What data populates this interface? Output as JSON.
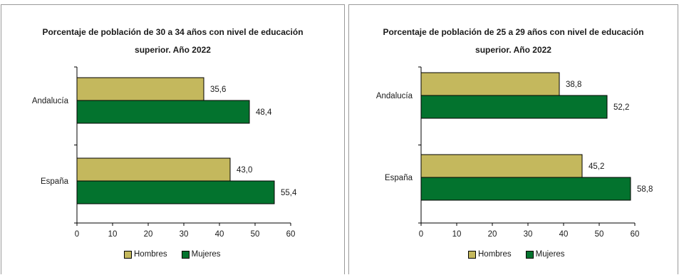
{
  "colors": {
    "hombres": "#c4b85d",
    "mujeres": "#03732e",
    "axis": "#000000"
  },
  "chart_data": [
    {
      "type": "bar",
      "orientation": "horizontal",
      "title_line1": "Porcentaje de población de 30 a 34 años con nivel de educación",
      "title_line2": "superior. Año 2022",
      "categories": [
        "Andalucía",
        "España"
      ],
      "series": [
        {
          "name": "Hombres",
          "values": [
            35.6,
            43.0
          ],
          "labels": [
            "35,6",
            "43,0"
          ]
        },
        {
          "name": "Mujeres",
          "values": [
            48.4,
            55.4
          ],
          "labels": [
            "48,4",
            "55,4"
          ]
        }
      ],
      "xlim": [
        0,
        60
      ],
      "xticks": [
        "0",
        "10",
        "20",
        "30",
        "40",
        "50",
        "60"
      ],
      "legend_position": "bottom",
      "grid": false
    },
    {
      "type": "bar",
      "orientation": "horizontal",
      "title_line1": "Porcentaje de población de 25 a 29 años con nivel de educación",
      "title_line2": "superior. Año 2022",
      "categories": [
        "Andalucía",
        "España"
      ],
      "series": [
        {
          "name": "Hombres",
          "values": [
            38.8,
            45.2
          ],
          "labels": [
            "38,8",
            "45,2"
          ]
        },
        {
          "name": "Mujeres",
          "values": [
            52.2,
            58.8
          ],
          "labels": [
            "52,2",
            "58,8"
          ]
        }
      ],
      "xlim": [
        0,
        60
      ],
      "xticks": [
        "0",
        "10",
        "20",
        "30",
        "40",
        "50",
        "60"
      ],
      "legend_position": "bottom",
      "grid": false
    }
  ]
}
